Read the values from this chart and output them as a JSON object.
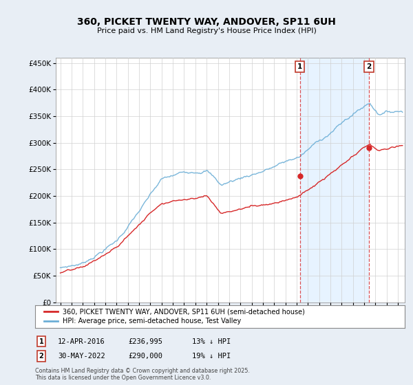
{
  "title": "360, PICKET TWENTY WAY, ANDOVER, SP11 6UH",
  "subtitle": "Price paid vs. HM Land Registry's House Price Index (HPI)",
  "ytick_values": [
    0,
    50000,
    100000,
    150000,
    200000,
    250000,
    300000,
    350000,
    400000,
    450000
  ],
  "ylim": [
    0,
    460000
  ],
  "xlim_start": 1994.6,
  "xlim_end": 2025.6,
  "hpi_color": "#6baed6",
  "price_color": "#d62728",
  "marker1_x": 2016.28,
  "marker1_y": 236995,
  "marker2_x": 2022.42,
  "marker2_y": 290000,
  "vline1_x": 2016.28,
  "vline2_x": 2022.42,
  "shade_color": "#ddeeff",
  "legend_label1": "360, PICKET TWENTY WAY, ANDOVER, SP11 6UH (semi-detached house)",
  "legend_label2": "HPI: Average price, semi-detached house, Test Valley",
  "annot1_date": "12-APR-2016",
  "annot1_price": "£236,995",
  "annot1_hpi": "13% ↓ HPI",
  "annot2_date": "30-MAY-2022",
  "annot2_price": "£290,000",
  "annot2_hpi": "19% ↓ HPI",
  "footer": "Contains HM Land Registry data © Crown copyright and database right 2025.\nThis data is licensed under the Open Government Licence v3.0.",
  "background_color": "#e8eef5",
  "plot_bg_color": "#ffffff",
  "grid_color": "#d0d0d0"
}
